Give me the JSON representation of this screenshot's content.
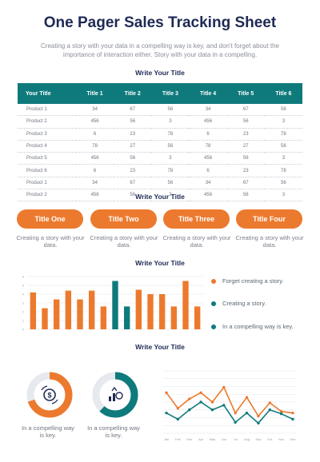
{
  "header": {
    "title": "One Pager Sales Tracking Sheet",
    "subtitle": "Creating a story with your data in a compelling way is key, and don't forget about the importance of interaction either. Story with your data in a compelling."
  },
  "sections": {
    "s1": "Write Your Title",
    "s2": "Write Your Title",
    "s3": "Write Your Title",
    "s4": "Write Your Title"
  },
  "table": {
    "headers": [
      "Your Title",
      "Title 1",
      "Title 2",
      "Title 3",
      "Title 4",
      "Title 5",
      "Title 6"
    ],
    "rows": [
      [
        "Product 1",
        "34",
        "67",
        "56",
        "34",
        "67",
        "56"
      ],
      [
        "Product 2",
        "456",
        "56",
        "3",
        "456",
        "56",
        "3"
      ],
      [
        "Product 3",
        "6",
        "23",
        "78",
        "6",
        "23",
        "78"
      ],
      [
        "Product 4",
        "78",
        "27",
        "56",
        "78",
        "27",
        "56"
      ],
      [
        "Product 5",
        "456",
        "56",
        "3",
        "456",
        "56",
        "3"
      ],
      [
        "Product 6",
        "6",
        "23",
        "78",
        "6",
        "23",
        "78"
      ],
      [
        "Product 1",
        "34",
        "67",
        "56",
        "34",
        "67",
        "56"
      ],
      [
        "Product 2",
        "456",
        "56",
        "3",
        "456",
        "56",
        "3"
      ]
    ]
  },
  "pills": [
    {
      "label": "Title One",
      "text": "Creating a story with your data."
    },
    {
      "label": "Title Two",
      "text": "Creating a story with your data."
    },
    {
      "label": "Title Three",
      "text": "Creating a story with your data."
    },
    {
      "label": "Title Four",
      "text": "Creating a story with your data."
    }
  ],
  "legend": [
    {
      "label": "Forget creating a story.",
      "color": "#ec7a2e"
    },
    {
      "label": "Creating a story.",
      "color": "#0f7a7c"
    },
    {
      "label": "In a compelling way is key.",
      "color": "#0f7a7c"
    }
  ],
  "donuts": [
    {
      "caption": "In a compelling way is key.",
      "fraction": 0.7,
      "color": "#ec7a2e",
      "icon": "dollar-coin-icon"
    },
    {
      "caption": "In a compelling way is key.",
      "fraction": 0.62,
      "color": "#0f7a7c",
      "icon": "money-growth-icon"
    }
  ],
  "colors": {
    "orange": "#ec7a2e",
    "teal": "#0f7a7c",
    "navy": "#1f2a55"
  },
  "chart_data": [
    {
      "type": "bar",
      "ylim": [
        0,
        6
      ],
      "y_ticks": [
        "0",
        "1",
        "2",
        "3",
        "4",
        "5",
        "6"
      ],
      "values": [
        4.2,
        2.4,
        3.4,
        4.4,
        3.4,
        4.4,
        2.6,
        5.5,
        2.6,
        4.5,
        4.0,
        4.0,
        2.6,
        5.5,
        2.6
      ],
      "colors": [
        "#ec7a2e",
        "#ec7a2e",
        "#ec7a2e",
        "#ec7a2e",
        "#ec7a2e",
        "#ec7a2e",
        "#ec7a2e",
        "#0f7a7c",
        "#0f7a7c",
        "#ec7a2e",
        "#ec7a2e",
        "#ec7a2e",
        "#ec7a2e",
        "#ec7a2e",
        "#ec7a2e"
      ],
      "grid": true
    },
    {
      "type": "line",
      "categories": [
        "Jan",
        "Feb",
        "Mar",
        "Apr",
        "May",
        "Jun",
        "Jul",
        "Aug",
        "Sep",
        "Oct",
        "Nov",
        "Dec"
      ],
      "ylim": [
        0,
        8
      ],
      "grid": true,
      "series": [
        {
          "color": "#ec7a2e",
          "values": [
            5.2,
            3.2,
            4.4,
            5.2,
            4.0,
            5.9,
            2.6,
            4.6,
            2.2,
            3.9,
            2.8,
            2.6
          ]
        },
        {
          "color": "#0f7a7c",
          "values": [
            2.6,
            1.8,
            3.0,
            4.0,
            3.0,
            3.6,
            1.4,
            2.6,
            1.3,
            3.0,
            2.5,
            1.8
          ]
        }
      ]
    }
  ]
}
